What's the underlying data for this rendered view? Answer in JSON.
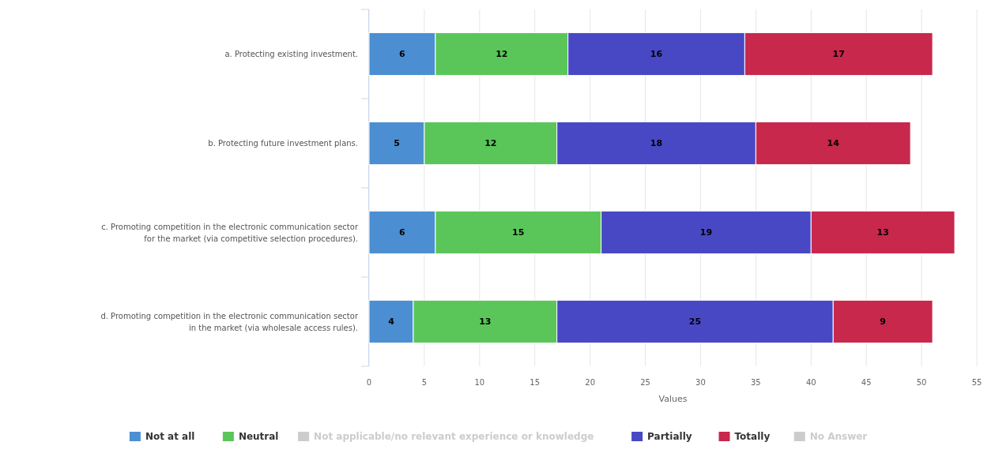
{
  "chart_data": {
    "type": "bar",
    "orientation": "horizontal",
    "stacked": true,
    "xlabel": "Values",
    "categories": [
      "a. Protecting existing investment.",
      "b. Protecting future investment plans.",
      "c. Promoting competition in the electronic communication sector\nfor the market (via competitive selection procedures).",
      "d. Promoting competition in the electronic communication sector\nin the market (via wholesale access rules)."
    ],
    "series": [
      {
        "name": "Not at all",
        "color": "#4b8fd2",
        "values": [
          6,
          5,
          6,
          4
        ]
      },
      {
        "name": "Neutral",
        "color": "#5ac65a",
        "values": [
          12,
          12,
          15,
          13
        ]
      },
      {
        "name": "Not applicable/no relevant experience or knowledge",
        "color": "#cccccc",
        "values": [
          null,
          null,
          null,
          null
        ]
      },
      {
        "name": "Partially",
        "color": "#4848c4",
        "values": [
          16,
          18,
          19,
          25
        ]
      },
      {
        "name": "Totally",
        "color": "#c8284c",
        "values": [
          17,
          14,
          13,
          9
        ]
      },
      {
        "name": "No Answer",
        "color": "#cccccc",
        "values": [
          null,
          null,
          null,
          null
        ]
      }
    ],
    "xlim": [
      0,
      55
    ],
    "xticks": [
      0,
      5,
      10,
      15,
      20,
      25,
      30,
      35,
      40,
      45,
      50,
      55
    ],
    "grid": "x",
    "data_labels": true,
    "legend": "bottom"
  }
}
